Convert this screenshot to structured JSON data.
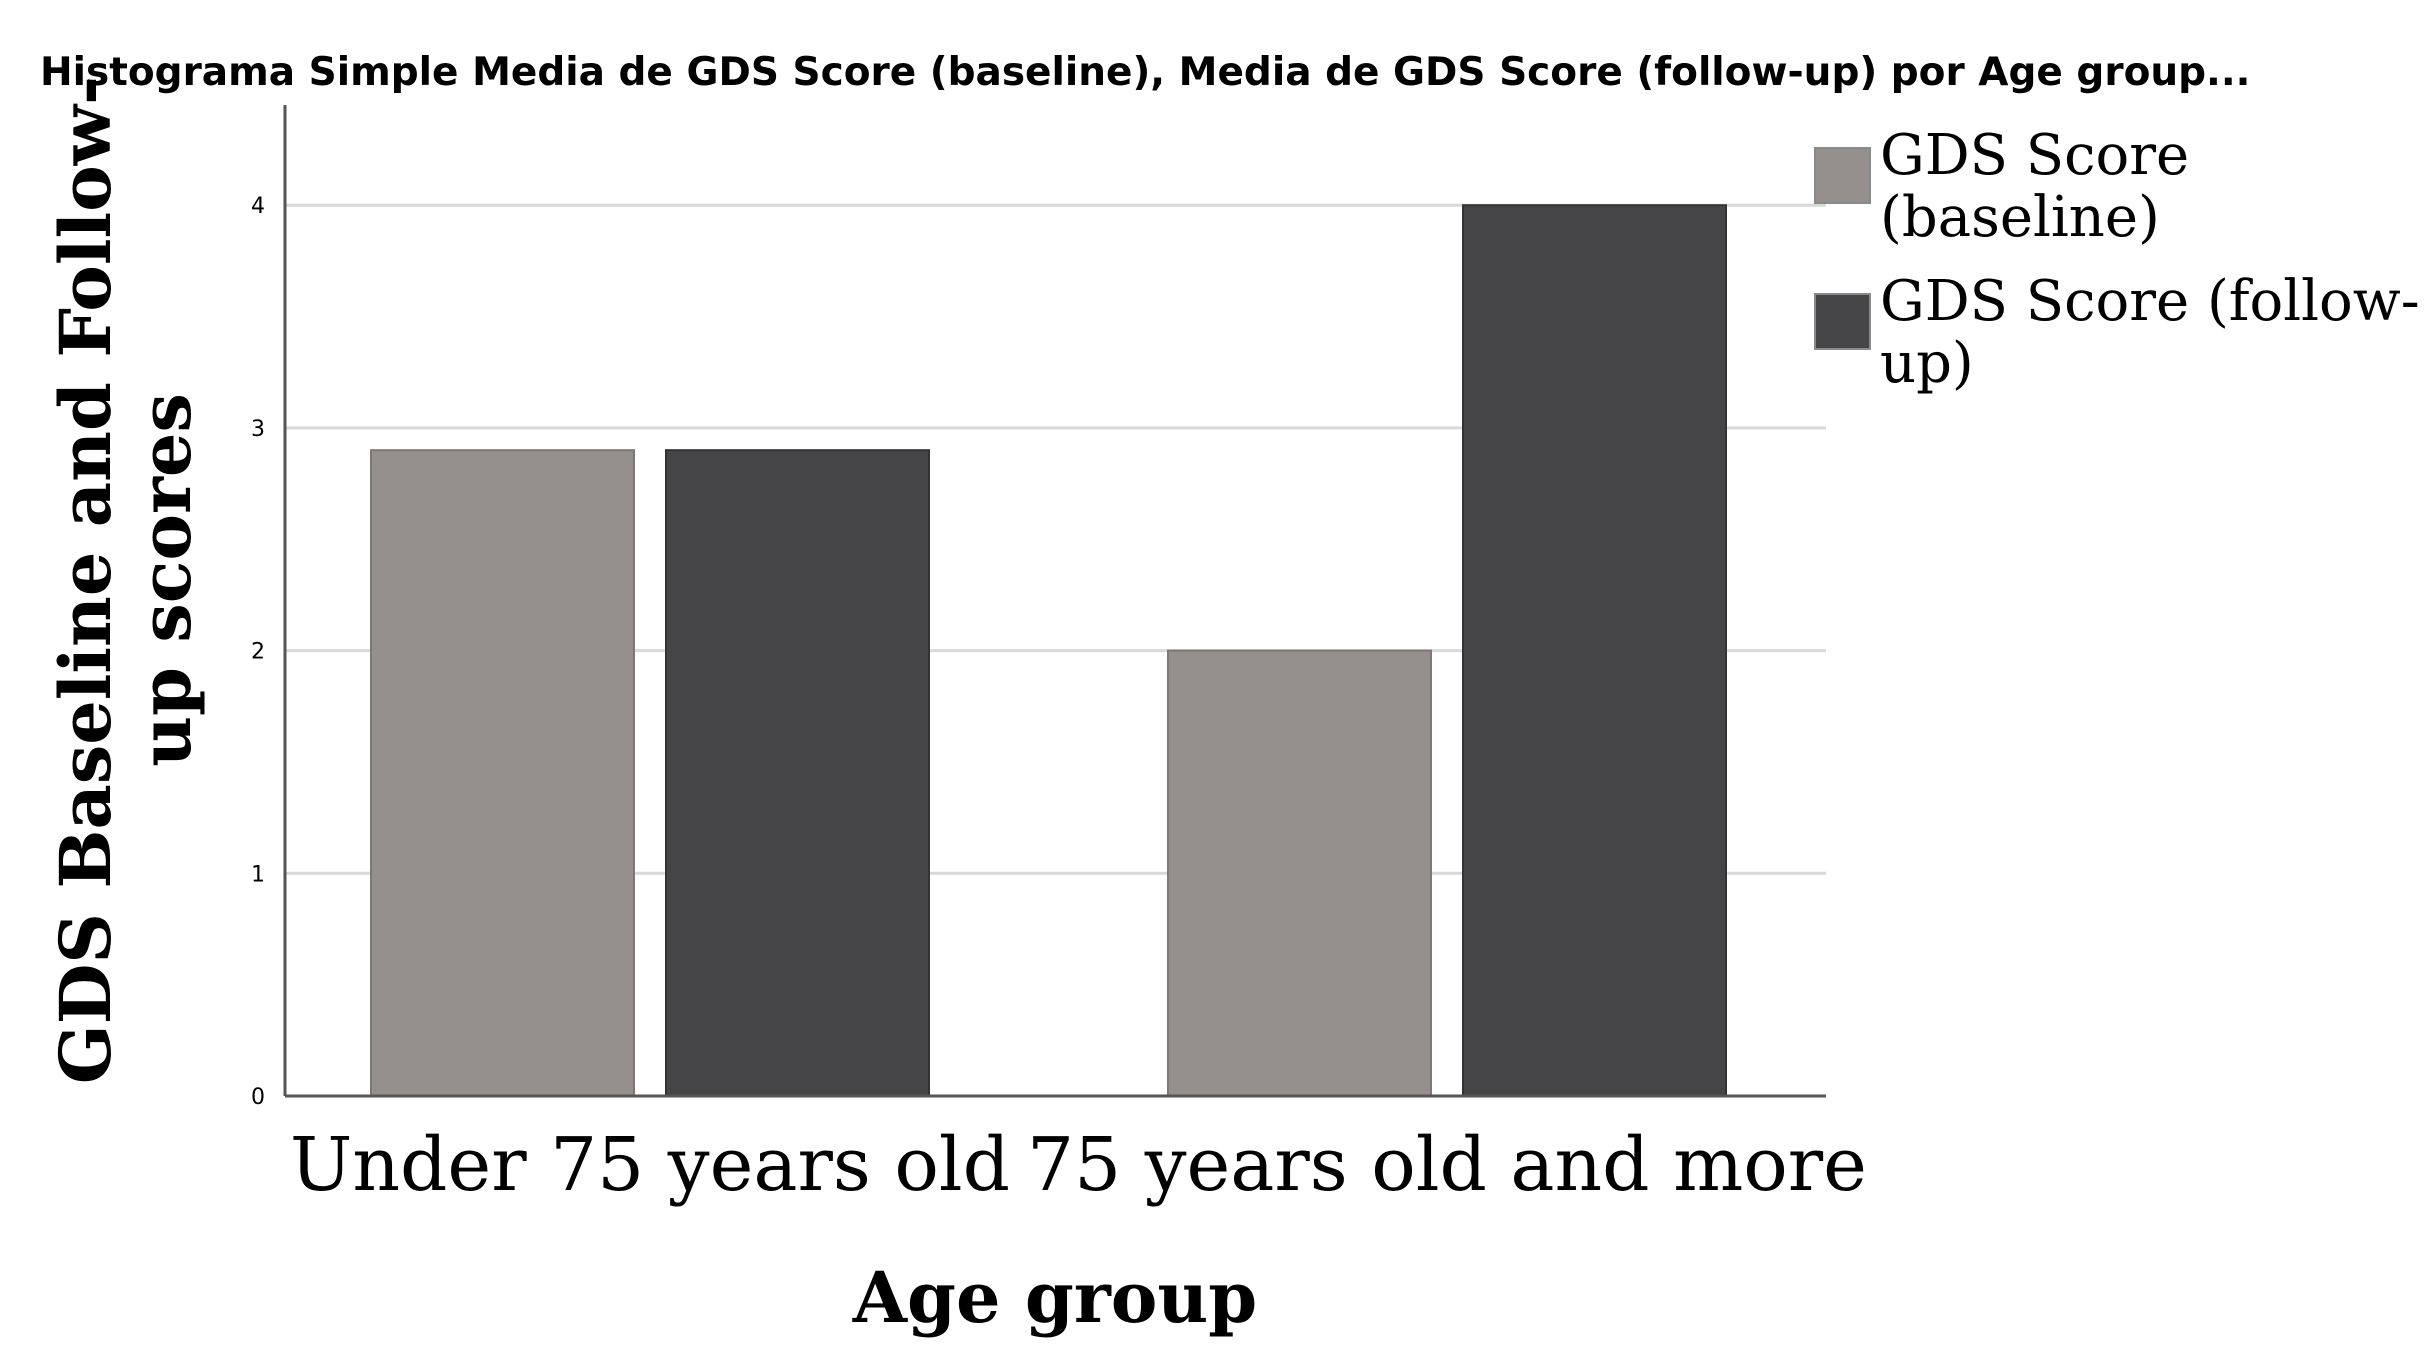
{
  "chart_data": {
    "type": "bar",
    "title": "Histograma Simple Media de GDS Score (baseline), Media de GDS Score (follow-up) por Age group...",
    "xlabel": "Age group",
    "ylabel_lines": [
      "GDS Baseline and Follow-",
      "up scores"
    ],
    "categories": [
      "Under 75 years old",
      "75 years old and more"
    ],
    "series": [
      {
        "name": "GDS Score (baseline)",
        "legend_lines": [
          "GDS Score",
          "(baseline)"
        ],
        "color": "#958f8d",
        "values": [
          2.9,
          2.0
        ]
      },
      {
        "name": "GDS Score (follow-up)",
        "legend_lines": [
          "GDS Score (follow-",
          "up)"
        ],
        "color": "#454547",
        "values": [
          2.9,
          4.0
        ]
      }
    ],
    "yticks": [
      0,
      1,
      2,
      3,
      4
    ],
    "ylim": [
      0,
      4.45
    ],
    "grid": true,
    "legend_position": "right"
  }
}
